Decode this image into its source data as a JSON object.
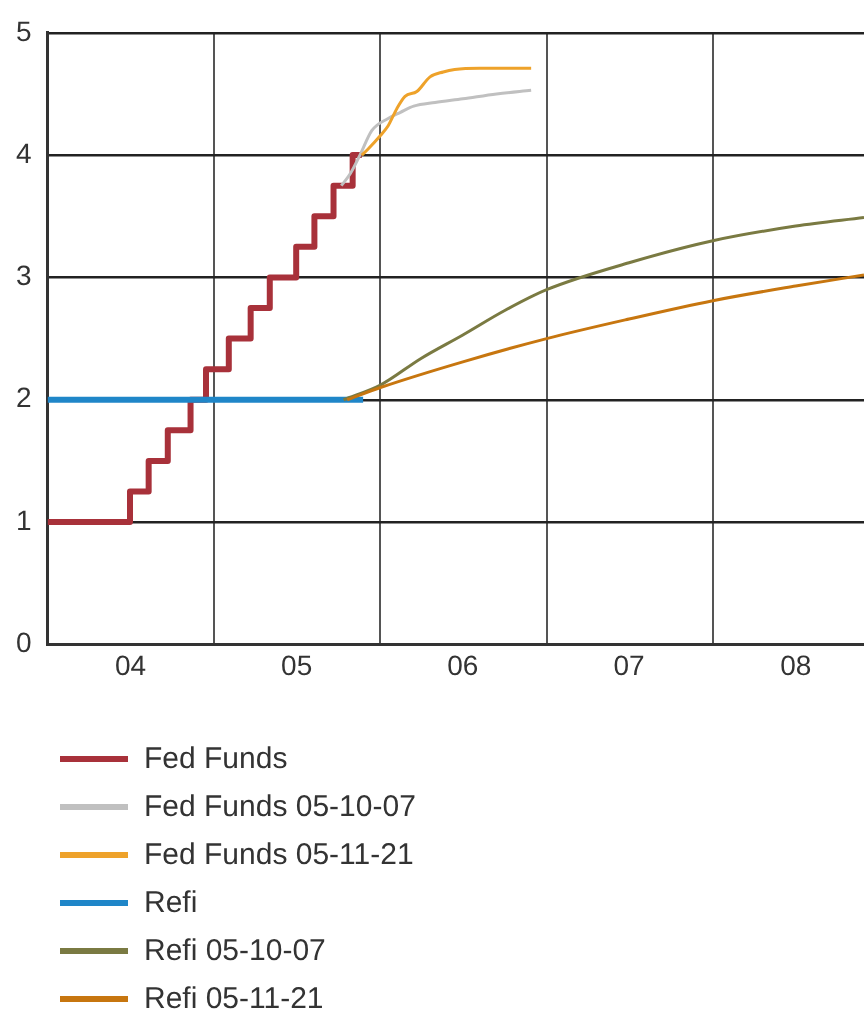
{
  "chart_data": {
    "type": "line",
    "xlim": [
      "2004-01-01",
      "2008-11-28"
    ],
    "ylim": [
      0,
      5
    ],
    "xticks": [
      {
        "value": "2004-07-01",
        "label": "04"
      },
      {
        "value": "2005-01-01",
        "label": null
      },
      {
        "value": "2005-07-01",
        "label": "05"
      },
      {
        "value": "2006-01-01",
        "label": null
      },
      {
        "value": "2006-07-01",
        "label": "06"
      },
      {
        "value": "2007-01-01",
        "label": null
      },
      {
        "value": "2007-07-01",
        "label": "07"
      },
      {
        "value": "2008-01-01",
        "label": null
      },
      {
        "value": "2008-07-01",
        "label": "08"
      }
    ],
    "yticks": [
      0,
      1,
      2,
      3,
      4,
      5
    ],
    "grid": true,
    "legend": "bottom",
    "marker": "none",
    "series": [
      {
        "name": "Fed Funds",
        "type": "step",
        "color": "#a8313a",
        "x": [
          "2004-01-01",
          "2004-06-30",
          "2004-08-10",
          "2004-09-21",
          "2004-11-10",
          "2004-12-14",
          "2005-02-02",
          "2005-03-22",
          "2005-05-03",
          "2005-06-30",
          "2005-08-09",
          "2005-09-20",
          "2005-11-01",
          "2005-11-21"
        ],
        "values": [
          1,
          1.25,
          1.5,
          1.75,
          2,
          2.25,
          2.5,
          2.75,
          3,
          3.25,
          3.5,
          3.75,
          4,
          4
        ]
      },
      {
        "name": "Fed Funds 05-10-07",
        "color": "#c0c0c0",
        "x": [
          "2005-10-07",
          "2005-10-27",
          "2005-11-17",
          "2005-12-13",
          "2006-01-18",
          "2006-02-14",
          "2006-03-15",
          "2006-05-01",
          "2006-07-01",
          "2006-09-13",
          "2006-11-28"
        ],
        "values": [
          3.75,
          3.85,
          4,
          4.2,
          4.3,
          4.35,
          4.4,
          4.43,
          4.46,
          4.5,
          4.53
        ]
      },
      {
        "name": "Fed Funds 05-11-21",
        "color": "#eea22a",
        "x": [
          "2005-11-21",
          "2005-12-05",
          "2006-01-01",
          "2006-01-18",
          "2006-02-06",
          "2006-02-24",
          "2006-03-22",
          "2006-04-20",
          "2006-05-19",
          "2006-06-13",
          "2006-08-07",
          "2006-11-28"
        ],
        "values": [
          4,
          4.05,
          4.16,
          4.24,
          4.38,
          4.48,
          4.52,
          4.64,
          4.68,
          4.7,
          4.71,
          4.71
        ]
      },
      {
        "name": "Refi",
        "color": "#1f86c8",
        "x": [
          "2004-01-01",
          "2005-11-24"
        ],
        "values": [
          2,
          2
        ]
      },
      {
        "name": "Refi 05-10-07",
        "color": "#7a7a42",
        "x": [
          "2005-10-12",
          "2006-01-01",
          "2006-04-01",
          "2006-07-01",
          "2006-10-01",
          "2007-01-01",
          "2007-07-01",
          "2008-01-01",
          "2008-07-01",
          "2008-11-28"
        ],
        "values": [
          2,
          2.12,
          2.34,
          2.53,
          2.73,
          2.9,
          3.12,
          3.3,
          3.42,
          3.49
        ]
      },
      {
        "name": "Refi 05-11-21",
        "color": "#c7760f",
        "x": [
          "2005-10-20",
          "2006-01-01",
          "2006-07-01",
          "2007-01-01",
          "2007-07-01",
          "2008-01-01",
          "2008-07-01",
          "2008-11-28"
        ],
        "values": [
          2,
          2.1,
          2.31,
          2.5,
          2.66,
          2.81,
          2.93,
          3.02
        ]
      }
    ]
  }
}
